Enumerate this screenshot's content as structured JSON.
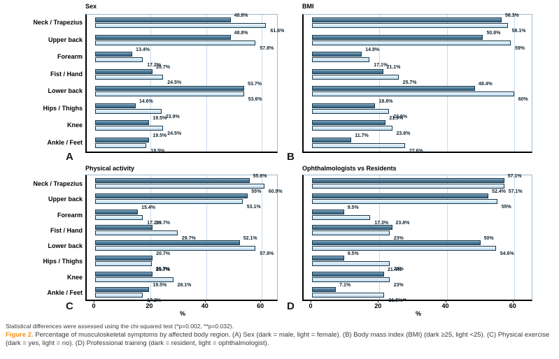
{
  "caption": {
    "stats_note": "Statistical differences were assessed using the chi-squared test (*p=0.002, **p=0.032).",
    "figure_label": "Figure 2.",
    "figure_text": " Percentage of musculoskeletal symptoms by affected body region. (A) Sex (dark = male, light = female). (B) Body mass index (BMI) (dark ≥25, light <25). (C) Physical exercise (dark = yes, light = no). (D) Professional training (dark = resident, light = ophthalmologist)."
  },
  "axis": {
    "xticks": [
      0,
      20,
      40,
      60
    ],
    "xlabel": "%",
    "xmax_layout": 64
  },
  "categories": [
    "Neck / Trapezius",
    "Upper back",
    "Forearm",
    "Fist / Hand",
    "Lower back",
    "Hips / Thighs",
    "Knee",
    "Ankle / Feet"
  ],
  "chart_data": [
    {
      "type": "bar",
      "orientation": "horizontal_grouped",
      "panel_letter": "A",
      "title": "Sex",
      "xlabel": "%",
      "xlim": [
        0,
        64
      ],
      "grid": true,
      "categories": [
        "Neck / Trapezius",
        "Upper back",
        "Forearm",
        "Fist / Hand",
        "Lower back",
        "Hips / Thighs",
        "Knee",
        "Ankle / Feet"
      ],
      "series": [
        {
          "name": "male (dark)",
          "values": [
            48.8,
            48.8,
            13.4,
            20.7,
            53.7,
            14.6,
            19.5,
            19.5
          ],
          "labels": [
            "48.8%",
            "48.8%",
            "13.4%",
            "20.7%",
            "53.7%",
            "14.6%",
            "19.5%",
            "19.5%"
          ]
        },
        {
          "name": "female (light)",
          "values": [
            61.6,
            57.8,
            17.2,
            24.5,
            53.6,
            23.9,
            24.5,
            18.5
          ],
          "labels": [
            "61.6%",
            "57.8%",
            "17.2%",
            "24.5%",
            "53.6%",
            "23.9%",
            "24.5%",
            "18.5%"
          ]
        }
      ]
    },
    {
      "type": "bar",
      "orientation": "horizontal_grouped",
      "panel_letter": "B",
      "title": "BMI",
      "xlabel": "%",
      "xlim": [
        0,
        64
      ],
      "grid": true,
      "categories": [
        "Neck / Trapezius",
        "Upper back",
        "Forearm",
        "Fist / Hand",
        "Lower back",
        "Hips / Thighs",
        "Knee",
        "Ankle / Feet"
      ],
      "series": [
        {
          "name": "BMI ≥25 (dark)",
          "values": [
            56.3,
            50.8,
            14.8,
            21.1,
            48.4,
            18.8,
            21.9,
            11.7
          ],
          "labels": [
            "56.3%",
            "50.8%",
            "14.8%",
            "21.1%",
            "48.4%",
            "18.8%",
            "21.9%",
            "11.7%"
          ]
        },
        {
          "name": "BMI <25 (light)",
          "values": [
            58.1,
            59,
            17.1,
            25.7,
            60,
            22.9,
            23.8,
            27.6
          ],
          "labels": [
            "58.1%",
            "59%",
            "17.1%",
            "25.7%",
            "60%",
            "22.9%",
            "23.8%",
            "27.6%"
          ]
        }
      ]
    },
    {
      "type": "bar",
      "orientation": "horizontal_grouped",
      "panel_letter": "C",
      "title": "Physical activity",
      "xlabel": "%",
      "xlim": [
        0,
        64
      ],
      "grid": true,
      "categories": [
        "Neck / Trapezius",
        "Upper back",
        "Forearm",
        "Fist / Hand",
        "Lower back",
        "Hips / Thighs",
        "Knee",
        "Ankle / Feet"
      ],
      "series": [
        {
          "name": "exercise yes (dark)",
          "values": [
            55.6,
            55,
            15.4,
            20.7,
            52.1,
            20.7,
            20.7,
            19.5
          ],
          "labels": [
            "55.6%",
            "55%",
            "15.4%",
            "20.7%",
            "52.1%",
            "20.7%",
            "20.7%",
            "19.5%"
          ]
        },
        {
          "name": "exercise no (light)",
          "values": [
            60.9,
            53.1,
            17.2,
            29.7,
            57.8,
            20.3,
            28.1,
            17.2
          ],
          "labels": [
            "60.9%",
            "53.1%",
            "17.2%",
            "29.7%",
            "57.8%",
            "20.3%",
            "28.1%",
            "17.2%"
          ]
        }
      ]
    },
    {
      "type": "bar",
      "orientation": "horizontal_grouped",
      "panel_letter": "D",
      "title": "Ophthalmologists vs Residents",
      "xlabel": "%",
      "xlim": [
        0,
        64
      ],
      "grid": true,
      "categories": [
        "Neck / Trapezius",
        "Upper back",
        "Forearm",
        "Fist / Hand",
        "Lower back",
        "Hips / Thighs",
        "Knee",
        "Ankle / Feet"
      ],
      "series": [
        {
          "name": "resident (dark)",
          "values": [
            57.1,
            52.4,
            9.5,
            23.8,
            50,
            9.5,
            21.4,
            7.1
          ],
          "labels": [
            "57.1%",
            "52.4%",
            "9.5%",
            "23.8%",
            "50%",
            "9.5%",
            "21.4%",
            "7.1%"
          ]
        },
        {
          "name": "ophthalmologist (light)",
          "values": [
            57.1,
            55,
            17.3,
            23,
            54.6,
            23,
            23,
            21.5
          ],
          "labels": [
            "57.1%",
            "55%",
            "17.3%",
            "23%",
            "54.6%",
            "23%",
            "23%",
            "21.5%**"
          ]
        }
      ]
    }
  ],
  "colors": {
    "dark_bar": "#45718f",
    "light_bar": "#cde3f3",
    "bar_border": "#18374a",
    "gridline": "#c9dcee",
    "figure_label_orange": "#f0921e"
  }
}
